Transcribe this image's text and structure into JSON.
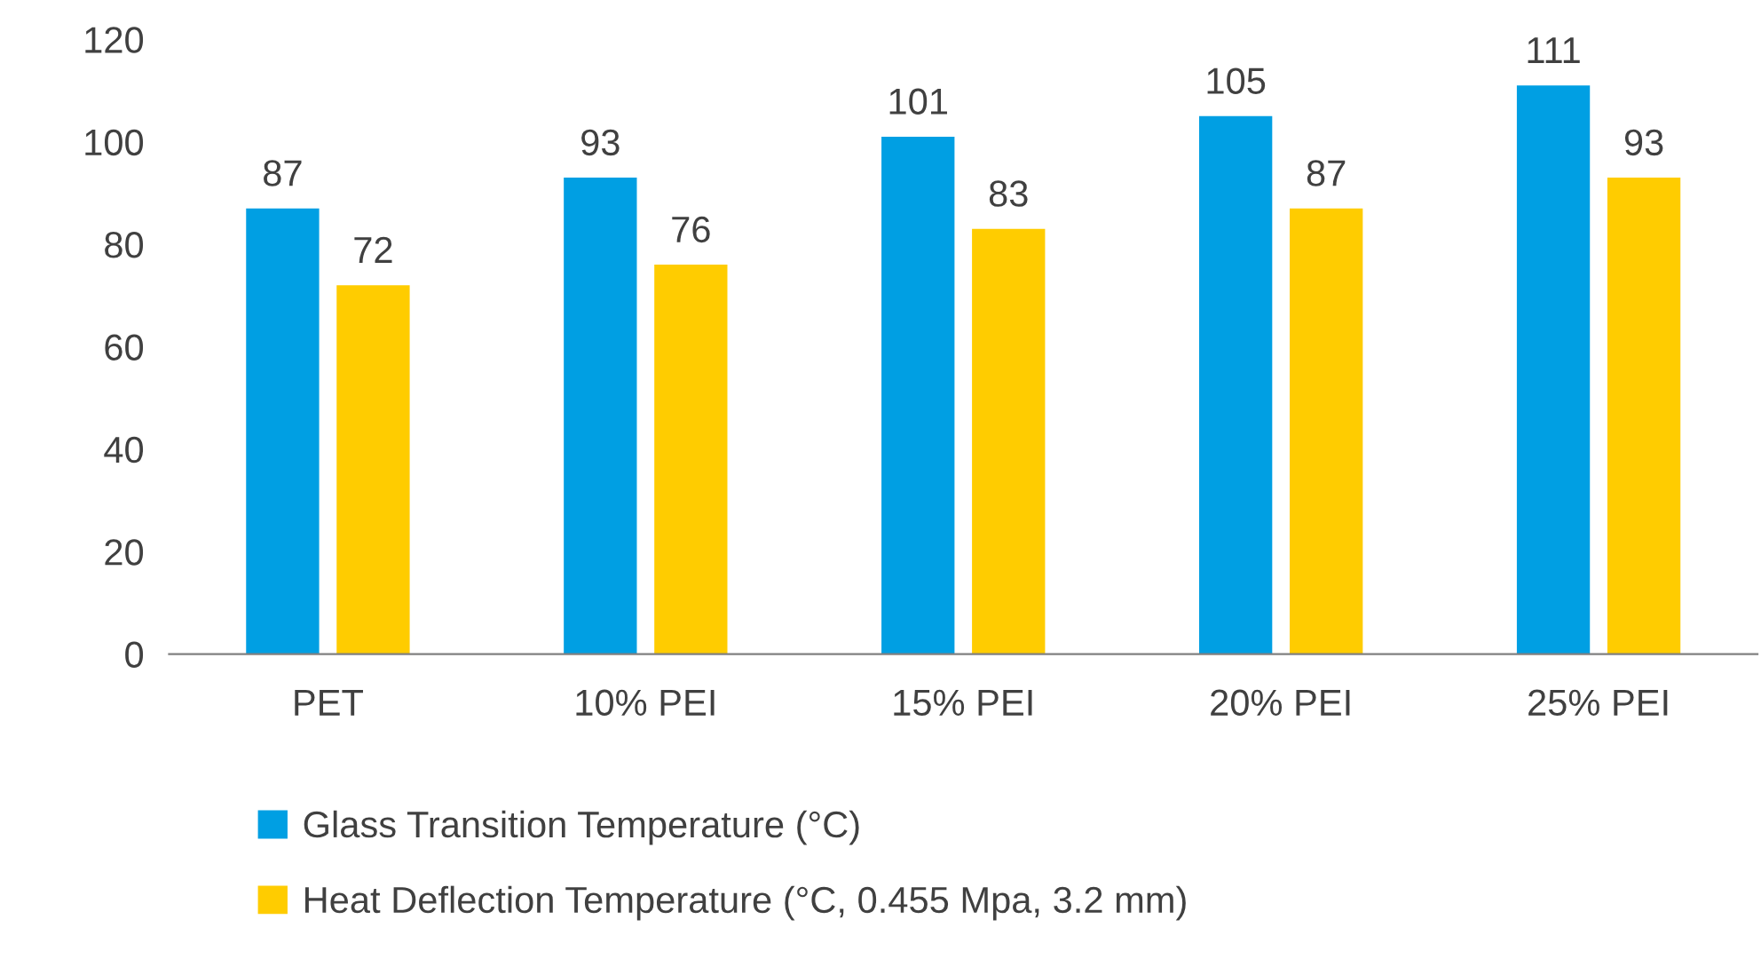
{
  "chart_data": {
    "type": "bar",
    "categories": [
      "PET",
      "10% PEI",
      "15% PEI",
      "20% PEI",
      "25% PEI"
    ],
    "series": [
      {
        "name": "Glass Transition Temperature (°C)",
        "color": "#009fe3",
        "values": [
          87,
          93,
          101,
          105,
          111
        ]
      },
      {
        "name": "Heat Deflection Temperature (°C, 0.455 Mpa, 3.2 mm)",
        "color": "#ffcc00",
        "values": [
          72,
          76,
          83,
          87,
          93
        ]
      }
    ],
    "ylim": [
      0,
      120
    ],
    "yticks": [
      0,
      20,
      40,
      60,
      80,
      100,
      120
    ],
    "data_labels": true,
    "legend": "bottom",
    "grid": false
  }
}
